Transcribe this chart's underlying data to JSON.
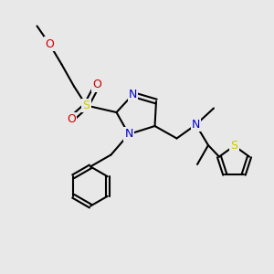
{
  "bg_color": "#e8e8e8",
  "atom_colors": {
    "C": "#000000",
    "N": "#0000cc",
    "O": "#cc0000",
    "S": "#cccc00"
  },
  "bond_color": "#000000",
  "bond_width": 1.5,
  "font_size_atom": 9
}
